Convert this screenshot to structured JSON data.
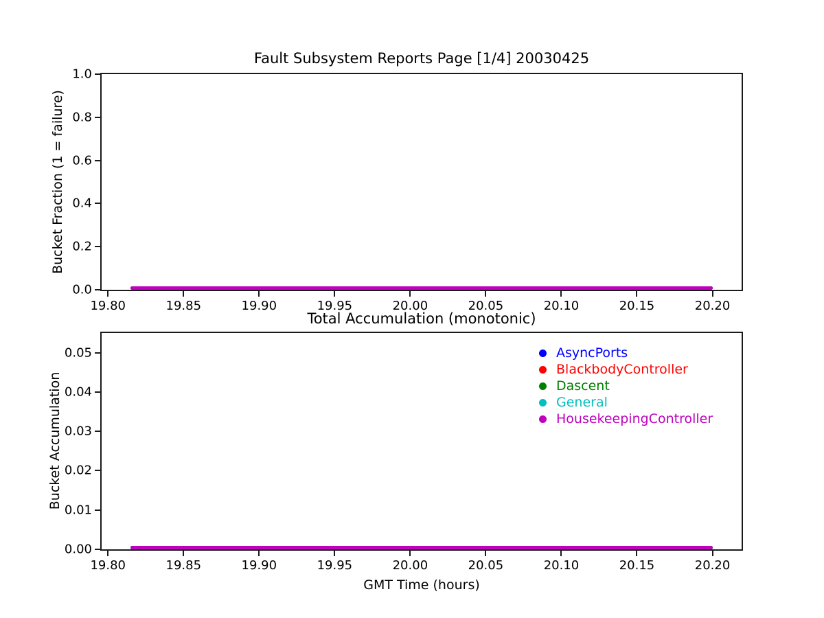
{
  "figure": {
    "background": "#ffffff",
    "text_color": "#000000",
    "spine_color": "#1a1a1a"
  },
  "chart_data": [
    {
      "type": "line",
      "title": "Fault Subsystem Reports Page [1/4] 20030425",
      "xlabel": "",
      "ylabel": "Bucket Fraction (1 = failure)",
      "xlim": [
        19.7958,
        20.2193
      ],
      "ylim": [
        0.0,
        1.0
      ],
      "xticks": [
        "19.80",
        "19.85",
        "19.90",
        "19.95",
        "20.00",
        "20.05",
        "20.10",
        "20.15",
        "20.20"
      ],
      "yticks": [
        "0.0",
        "0.2",
        "0.4",
        "0.6",
        "0.8",
        "1.0"
      ],
      "grid": false,
      "series": [
        {
          "name": "AsyncPorts",
          "color": "#0000ff",
          "x": [
            19.815,
            20.2
          ],
          "y": [
            0,
            0
          ]
        },
        {
          "name": "BlackbodyController",
          "color": "#ff0000",
          "x": [
            19.815,
            20.2
          ],
          "y": [
            0,
            0
          ]
        },
        {
          "name": "Dascent",
          "color": "#008000",
          "x": [
            19.815,
            20.2
          ],
          "y": [
            0,
            0
          ]
        },
        {
          "name": "General",
          "color": "#00bfbf",
          "x": [
            19.815,
            20.2
          ],
          "y": [
            0,
            0
          ]
        },
        {
          "name": "HousekeepingController",
          "color": "#bf00bf",
          "x": [
            19.815,
            20.2
          ],
          "y": [
            0,
            0
          ]
        }
      ]
    },
    {
      "type": "line",
      "title": "Total Accumulation (monotonic)",
      "xlabel": "GMT Time (hours)",
      "ylabel": "Bucket Accumulation",
      "xlim": [
        19.7958,
        20.2193
      ],
      "ylim": [
        0.0,
        0.055
      ],
      "xticks": [
        "19.80",
        "19.85",
        "19.90",
        "19.95",
        "20.00",
        "20.05",
        "20.10",
        "20.15",
        "20.20"
      ],
      "yticks": [
        "0.00",
        "0.01",
        "0.02",
        "0.03",
        "0.04",
        "0.05"
      ],
      "grid": false,
      "series": [
        {
          "name": "AsyncPorts",
          "color": "#0000ff",
          "x": [
            19.815,
            20.2
          ],
          "y": [
            0,
            0
          ]
        },
        {
          "name": "BlackbodyController",
          "color": "#ff0000",
          "x": [
            19.815,
            20.2
          ],
          "y": [
            0,
            0
          ]
        },
        {
          "name": "Dascent",
          "color": "#008000",
          "x": [
            19.815,
            20.2
          ],
          "y": [
            0,
            0
          ]
        },
        {
          "name": "General",
          "color": "#00bfbf",
          "x": [
            19.815,
            20.2
          ],
          "y": [
            0,
            0
          ]
        },
        {
          "name": "HousekeepingController",
          "color": "#bf00bf",
          "x": [
            19.815,
            20.2
          ],
          "y": [
            0,
            0
          ]
        }
      ],
      "legend": {
        "position": "upper-right",
        "frame": false,
        "marker": "dot",
        "entries": [
          {
            "label": "AsyncPorts",
            "color": "#0000ff"
          },
          {
            "label": "BlackbodyController",
            "color": "#ff0000"
          },
          {
            "label": "Dascent",
            "color": "#008000"
          },
          {
            "label": "General",
            "color": "#00bfbf"
          },
          {
            "label": "HousekeepingController",
            "color": "#bf00bf"
          }
        ]
      }
    }
  ]
}
